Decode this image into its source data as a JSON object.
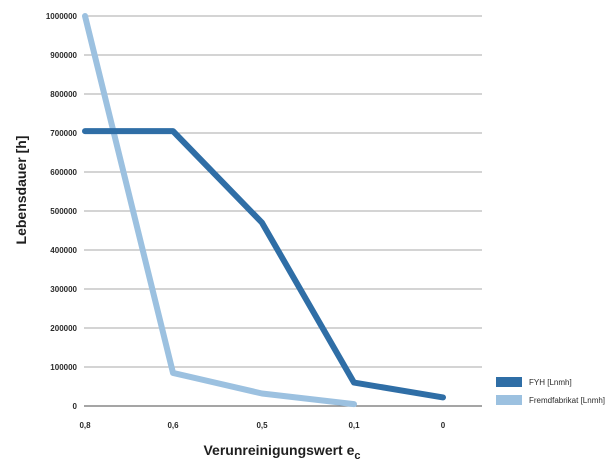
{
  "chart_data": {
    "type": "line",
    "x_categories": [
      "0,8",
      "0,6",
      "0,5",
      "0,1",
      "0"
    ],
    "series": [
      {
        "name": "FYH [Lnmh]",
        "color": "#2f6ea6",
        "values": [
          705000,
          705000,
          470000,
          60000,
          22000
        ]
      },
      {
        "name": "Fremdfabrikat [Lnmh]",
        "color": "#9cc1e0",
        "values": [
          1000000,
          85000,
          32000,
          5000,
          null
        ]
      }
    ],
    "y_ticks": [
      "0",
      "100000",
      "200000",
      "300000",
      "400000",
      "500000",
      "600000",
      "700000",
      "800000",
      "900000",
      "1000000"
    ],
    "ylim": [
      0,
      1000000
    ],
    "xlabel_text": "Verunreinigungswert e",
    "xlabel_subscript": "c",
    "ylabel": "Lebensdauer [h]",
    "grid": true,
    "legend_position": "bottom-right"
  }
}
